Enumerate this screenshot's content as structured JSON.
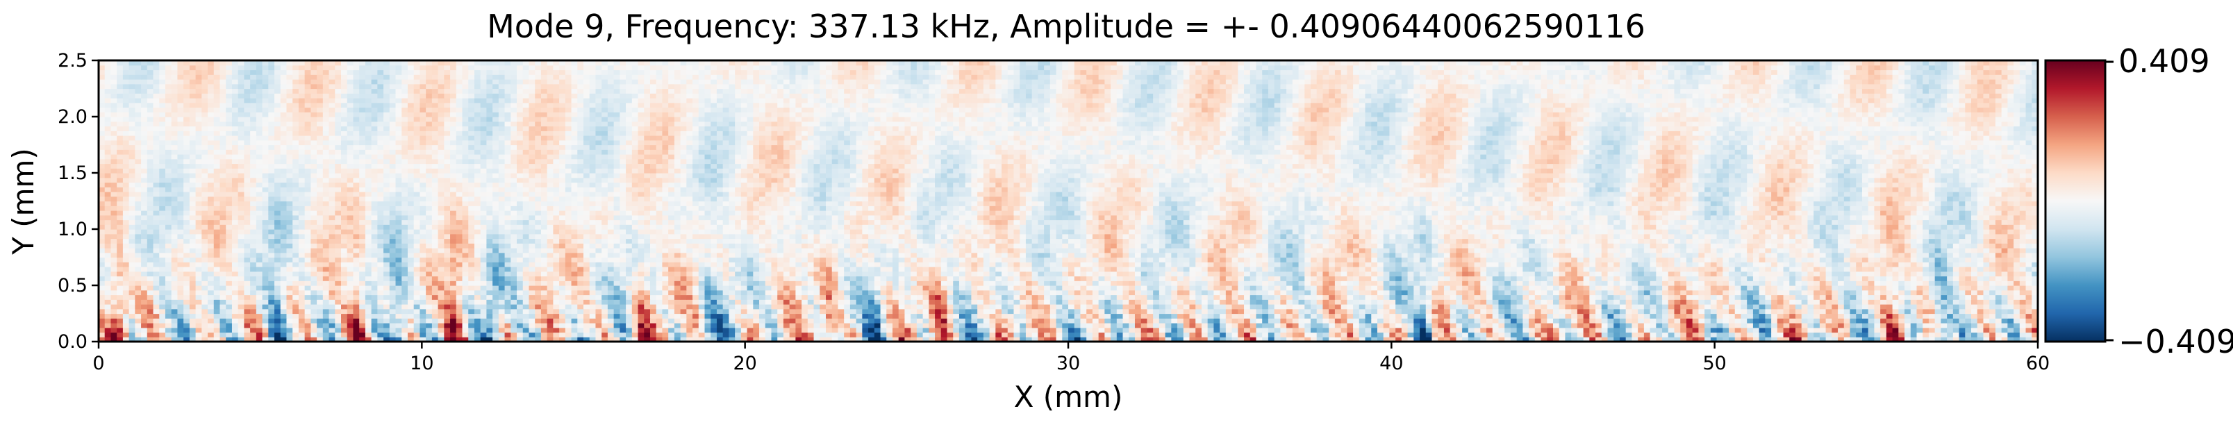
{
  "chart_data": {
    "type": "heatmap",
    "title": "Mode 9, Frequency: 337.13 kHz, Amplitude = +- 0.40906440062590116",
    "xlabel": "X (mm)",
    "ylabel": "Y (mm)",
    "xlim": [
      0,
      60
    ],
    "ylim": [
      0,
      2.5
    ],
    "xticks": [
      0,
      10,
      20,
      30,
      40,
      50,
      60
    ],
    "xtick_labels": [
      "0",
      "10",
      "20",
      "30",
      "40",
      "50",
      "60"
    ],
    "yticks": [
      0.0,
      0.5,
      1.0,
      1.5,
      2.0,
      2.5
    ],
    "ytick_labels": [
      "0.0",
      "0.5",
      "1.0",
      "1.5",
      "2.0",
      "2.5"
    ],
    "colormap": "RdBu_r",
    "vmin": -0.409,
    "vmax": 0.409,
    "colorbar_labels": [
      "0.409",
      "−0.409"
    ],
    "grid": false,
    "field_description": "diverging spatial mode; strongest alternating red/blue streaks near Y=0 to 0.5 mm, weaker diagonal stripes above",
    "colors": {
      "positive": "#67001f",
      "zero": "#f7f7f7",
      "negative": "#053061"
    }
  }
}
